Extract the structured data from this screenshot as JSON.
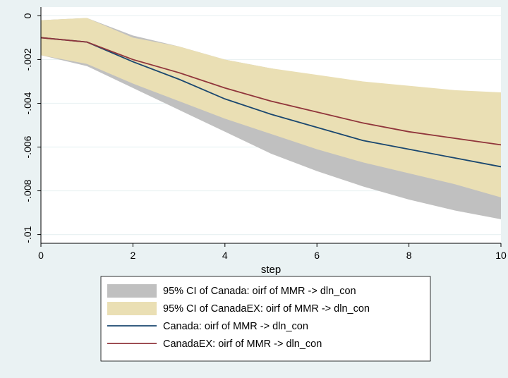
{
  "chart_data": {
    "type": "line",
    "title": "",
    "xlabel": "step",
    "ylabel": "",
    "xlim": [
      0,
      10
    ],
    "ylim": [
      -0.0104,
      0.0004
    ],
    "x_ticks": [
      0,
      2,
      4,
      6,
      8,
      10
    ],
    "x_tick_labels": [
      "0",
      "2",
      "4",
      "6",
      "8",
      "10"
    ],
    "y_ticks": [
      0,
      -0.002,
      -0.004,
      -0.006,
      -0.008,
      -0.01
    ],
    "y_tick_labels": [
      "0",
      "-.002",
      "-.004",
      "-.006",
      "-.008",
      "-.01"
    ],
    "grid": true,
    "legend_position": "bottom",
    "x": [
      0,
      1,
      2,
      3,
      4,
      5,
      6,
      7,
      8,
      9,
      10
    ],
    "bands": [
      {
        "name": "95% CI of Canada: oirf of MMR -> dln_con",
        "color": "#c0c0c0",
        "lower": [
          -0.0018,
          -0.0023,
          -0.0033,
          -0.0043,
          -0.0053,
          -0.0063,
          -0.0071,
          -0.0078,
          -0.0084,
          -0.0089,
          -0.0093
        ],
        "upper": [
          -0.0002,
          -0.0001,
          -0.0009,
          -0.0014,
          -0.002,
          -0.0024,
          -0.0028,
          -0.0031,
          -0.0033,
          -0.0035,
          -0.0036
        ]
      },
      {
        "name": "95% CI of CanadaEX: oirf of MMR -> dln_con",
        "color": "#eadfb4",
        "lower": [
          -0.0018,
          -0.0022,
          -0.0031,
          -0.0039,
          -0.0047,
          -0.0054,
          -0.0061,
          -0.0067,
          -0.0072,
          -0.0077,
          -0.0083
        ],
        "upper": [
          -0.0002,
          -0.0001,
          -0.001,
          -0.0014,
          -0.002,
          -0.0024,
          -0.0027,
          -0.003,
          -0.0032,
          -0.0034,
          -0.0035
        ]
      }
    ],
    "series": [
      {
        "name": "Canada: oirf of MMR -> dln_con",
        "color": "#1a476f",
        "values": [
          -0.001,
          -0.0012,
          -0.0021,
          -0.0029,
          -0.0038,
          -0.0045,
          -0.0051,
          -0.0057,
          -0.0061,
          -0.0065,
          -0.0069
        ]
      },
      {
        "name": "CanadaEX: oirf of MMR -> dln_con",
        "color": "#90353b",
        "values": [
          -0.001,
          -0.0012,
          -0.002,
          -0.0026,
          -0.0033,
          -0.0039,
          -0.0044,
          -0.0049,
          -0.0053,
          -0.0056,
          -0.0059
        ]
      }
    ]
  }
}
